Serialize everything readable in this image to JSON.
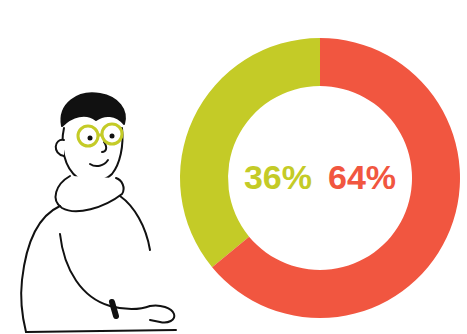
{
  "chart_data": {
    "type": "pie",
    "values": [
      36,
      64
    ],
    "value_labels": [
      "36%",
      "64%"
    ],
    "colors": [
      "#c4cb27",
      "#f15640"
    ],
    "data_labels": true
  }
}
